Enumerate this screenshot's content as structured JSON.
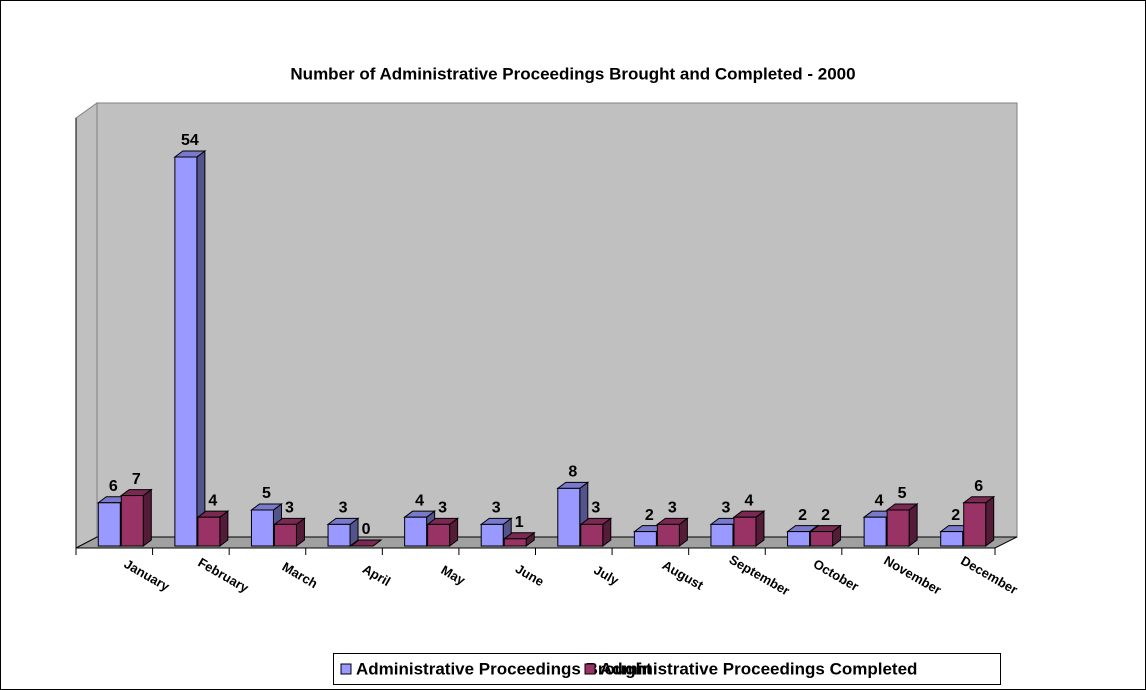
{
  "chart_data": {
    "type": "bar3d",
    "title": "Number of Administrative Proceedings Brought and Completed -  2000",
    "categories": [
      "January",
      "February",
      "March",
      "April",
      "May",
      "June",
      "July",
      "August",
      "September",
      "October",
      "November",
      "December"
    ],
    "series": [
      {
        "name": "Administrative Proceedings Brought",
        "color": "#9999ff",
        "values": [
          6,
          54,
          5,
          3,
          4,
          3,
          8,
          2,
          3,
          2,
          4,
          2
        ]
      },
      {
        "name": "Administrative Proceedings Completed",
        "color": "#993366",
        "values": [
          7,
          4,
          3,
          0,
          3,
          1,
          3,
          3,
          4,
          2,
          5,
          6
        ]
      }
    ],
    "legend": "bottom"
  }
}
